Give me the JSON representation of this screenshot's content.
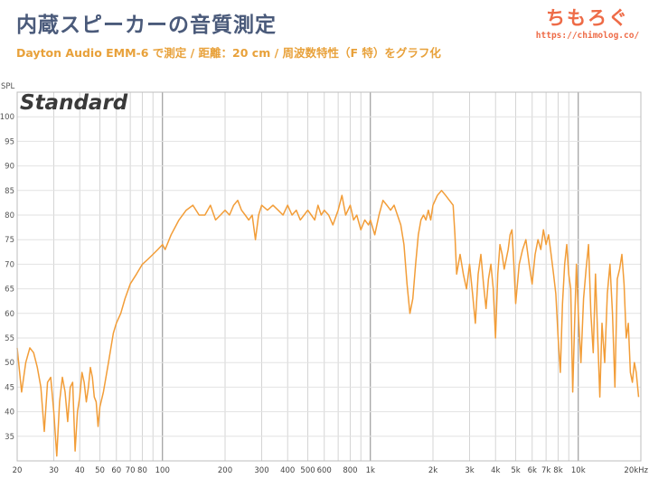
{
  "header": {
    "title": "内蔵スピーカーの音質測定",
    "subtitle": "Dayton Audio EMM-6 で測定 / 距離：20 cm / 周波数特性（F 特）をグラフ化",
    "brand_name": "ちもろぐ",
    "brand_url": "https://chimolog.co/"
  },
  "chart_data": {
    "type": "line",
    "title": "Standard",
    "xlabel": "",
    "ylabel": "SPL",
    "x_scale": "log",
    "xlim": [
      20,
      20000
    ],
    "ylim": [
      30,
      105
    ],
    "grid": true,
    "yticks": [
      35,
      40,
      45,
      50,
      55,
      60,
      65,
      70,
      75,
      80,
      85,
      90,
      95,
      100
    ],
    "xticks": [
      {
        "value": 20,
        "label": "20"
      },
      {
        "value": 30,
        "label": "30"
      },
      {
        "value": 40,
        "label": "40"
      },
      {
        "value": 50,
        "label": "50"
      },
      {
        "value": 60,
        "label": "60"
      },
      {
        "value": 70,
        "label": "70"
      },
      {
        "value": 80,
        "label": "80"
      },
      {
        "value": 100,
        "label": "100"
      },
      {
        "value": 200,
        "label": "200"
      },
      {
        "value": 300,
        "label": "300"
      },
      {
        "value": 400,
        "label": "400"
      },
      {
        "value": 500,
        "label": "500"
      },
      {
        "value": 600,
        "label": "600"
      },
      {
        "value": 800,
        "label": "800"
      },
      {
        "value": 1000,
        "label": "1k"
      },
      {
        "value": 2000,
        "label": "2k"
      },
      {
        "value": 3000,
        "label": "3k"
      },
      {
        "value": 4000,
        "label": "4k"
      },
      {
        "value": 5000,
        "label": "5k"
      },
      {
        "value": 6000,
        "label": "6k"
      },
      {
        "value": 7000,
        "label": "7k"
      },
      {
        "value": 8000,
        "label": "8k"
      },
      {
        "value": 10000,
        "label": "10k"
      },
      {
        "value": 20000,
        "label": "20kHz"
      }
    ],
    "series_color": "#f29d38",
    "series": [
      {
        "points": [
          [
            20,
            53
          ],
          [
            21,
            44
          ],
          [
            22,
            50
          ],
          [
            23,
            53
          ],
          [
            24,
            52
          ],
          [
            25,
            49
          ],
          [
            26,
            45
          ],
          [
            27,
            36
          ],
          [
            28,
            46
          ],
          [
            29,
            47
          ],
          [
            30,
            40
          ],
          [
            31,
            31
          ],
          [
            32,
            42
          ],
          [
            33,
            47
          ],
          [
            34,
            44
          ],
          [
            35,
            38
          ],
          [
            36,
            45
          ],
          [
            37,
            46
          ],
          [
            38,
            32
          ],
          [
            39,
            40
          ],
          [
            40,
            43
          ],
          [
            41,
            48
          ],
          [
            42,
            46
          ],
          [
            43,
            42
          ],
          [
            44,
            45
          ],
          [
            45,
            49
          ],
          [
            46,
            47
          ],
          [
            47,
            43
          ],
          [
            48,
            42
          ],
          [
            49,
            37
          ],
          [
            50,
            41
          ],
          [
            52,
            44
          ],
          [
            55,
            50
          ],
          [
            58,
            56
          ],
          [
            60,
            58
          ],
          [
            63,
            60
          ],
          [
            66,
            63
          ],
          [
            70,
            66
          ],
          [
            75,
            68
          ],
          [
            80,
            70
          ],
          [
            85,
            71
          ],
          [
            90,
            72
          ],
          [
            95,
            73
          ],
          [
            100,
            74
          ],
          [
            103,
            73
          ],
          [
            110,
            76
          ],
          [
            120,
            79
          ],
          [
            130,
            81
          ],
          [
            140,
            82
          ],
          [
            150,
            80
          ],
          [
            160,
            80
          ],
          [
            170,
            82
          ],
          [
            180,
            79
          ],
          [
            190,
            80
          ],
          [
            200,
            81
          ],
          [
            210,
            80
          ],
          [
            220,
            82
          ],
          [
            230,
            83
          ],
          [
            240,
            81
          ],
          [
            250,
            80
          ],
          [
            260,
            79
          ],
          [
            270,
            80
          ],
          [
            280,
            75
          ],
          [
            290,
            80
          ],
          [
            300,
            82
          ],
          [
            320,
            81
          ],
          [
            340,
            82
          ],
          [
            360,
            81
          ],
          [
            380,
            80
          ],
          [
            400,
            82
          ],
          [
            420,
            80
          ],
          [
            440,
            81
          ],
          [
            460,
            79
          ],
          [
            480,
            80
          ],
          [
            500,
            81
          ],
          [
            520,
            80
          ],
          [
            540,
            79
          ],
          [
            560,
            82
          ],
          [
            580,
            80
          ],
          [
            600,
            81
          ],
          [
            630,
            80
          ],
          [
            660,
            78
          ],
          [
            700,
            81
          ],
          [
            730,
            84
          ],
          [
            760,
            80
          ],
          [
            800,
            82
          ],
          [
            830,
            79
          ],
          [
            860,
            80
          ],
          [
            900,
            77
          ],
          [
            940,
            79
          ],
          [
            980,
            78
          ],
          [
            1000,
            79
          ],
          [
            1050,
            76
          ],
          [
            1100,
            80
          ],
          [
            1150,
            83
          ],
          [
            1200,
            82
          ],
          [
            1250,
            81
          ],
          [
            1300,
            82
          ],
          [
            1350,
            80
          ],
          [
            1400,
            78
          ],
          [
            1450,
            74
          ],
          [
            1500,
            66
          ],
          [
            1550,
            60
          ],
          [
            1600,
            63
          ],
          [
            1650,
            70
          ],
          [
            1700,
            76
          ],
          [
            1750,
            79
          ],
          [
            1800,
            80
          ],
          [
            1850,
            79
          ],
          [
            1900,
            81
          ],
          [
            1950,
            79
          ],
          [
            2000,
            82
          ],
          [
            2100,
            84
          ],
          [
            2200,
            85
          ],
          [
            2300,
            84
          ],
          [
            2400,
            83
          ],
          [
            2500,
            82
          ],
          [
            2550,
            76
          ],
          [
            2600,
            68
          ],
          [
            2700,
            72
          ],
          [
            2800,
            68
          ],
          [
            2900,
            65
          ],
          [
            3000,
            70
          ],
          [
            3100,
            64
          ],
          [
            3200,
            58
          ],
          [
            3300,
            68
          ],
          [
            3400,
            72
          ],
          [
            3500,
            66
          ],
          [
            3600,
            61
          ],
          [
            3700,
            67
          ],
          [
            3800,
            70
          ],
          [
            3900,
            65
          ],
          [
            4000,
            55
          ],
          [
            4100,
            68
          ],
          [
            4200,
            74
          ],
          [
            4300,
            72
          ],
          [
            4400,
            69
          ],
          [
            4600,
            73
          ],
          [
            4700,
            76
          ],
          [
            4800,
            77
          ],
          [
            4900,
            70
          ],
          [
            5000,
            62
          ],
          [
            5200,
            70
          ],
          [
            5400,
            73
          ],
          [
            5600,
            75
          ],
          [
            5800,
            70
          ],
          [
            6000,
            66
          ],
          [
            6200,
            72
          ],
          [
            6400,
            75
          ],
          [
            6600,
            73
          ],
          [
            6800,
            77
          ],
          [
            7000,
            74
          ],
          [
            7200,
            76
          ],
          [
            7400,
            72
          ],
          [
            7600,
            68
          ],
          [
            7800,
            64
          ],
          [
            8000,
            55
          ],
          [
            8200,
            48
          ],
          [
            8400,
            62
          ],
          [
            8600,
            70
          ],
          [
            8800,
            74
          ],
          [
            9000,
            68
          ],
          [
            9200,
            65
          ],
          [
            9400,
            44
          ],
          [
            9600,
            58
          ],
          [
            9800,
            70
          ],
          [
            10000,
            60
          ],
          [
            10300,
            50
          ],
          [
            10600,
            63
          ],
          [
            10900,
            69
          ],
          [
            11200,
            74
          ],
          [
            11500,
            60
          ],
          [
            11800,
            52
          ],
          [
            12100,
            68
          ],
          [
            12400,
            55
          ],
          [
            12700,
            43
          ],
          [
            13000,
            58
          ],
          [
            13400,
            50
          ],
          [
            13800,
            64
          ],
          [
            14200,
            70
          ],
          [
            14600,
            60
          ],
          [
            15000,
            45
          ],
          [
            15400,
            67
          ],
          [
            15800,
            69
          ],
          [
            16200,
            72
          ],
          [
            16600,
            66
          ],
          [
            17000,
            55
          ],
          [
            17400,
            58
          ],
          [
            17800,
            48
          ],
          [
            18200,
            46
          ],
          [
            18600,
            50
          ],
          [
            19000,
            48
          ],
          [
            19500,
            43
          ]
        ]
      }
    ]
  }
}
